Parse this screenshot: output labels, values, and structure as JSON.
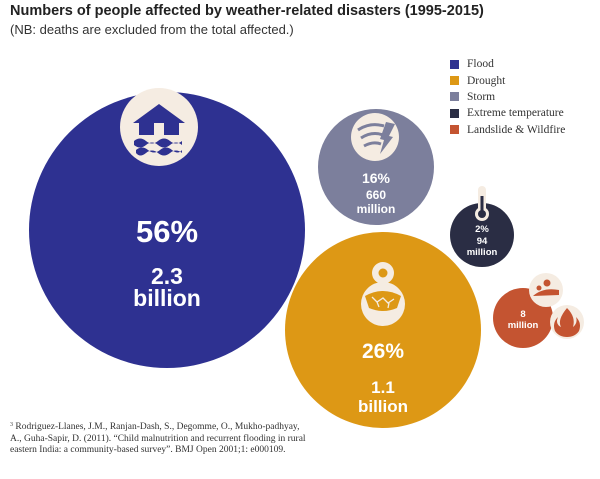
{
  "colors": {
    "flood": "#2e3191",
    "drought": "#dd9815",
    "storm": "#7c7f9c",
    "extreme": "#2a2d44",
    "landslide": "#c45431",
    "icon_bg": "#f5ece2"
  },
  "chart_data": {
    "type": "bubble",
    "title": "Numbers of people affected by weather-related disasters (1995-2015)",
    "subtitle": "(NB: deaths are excluded from the total affected.)",
    "legend": [
      {
        "key": "flood",
        "label": "Flood"
      },
      {
        "key": "drought",
        "label": "Drought"
      },
      {
        "key": "storm",
        "label": "Storm"
      },
      {
        "key": "extreme",
        "label": "Extreme temperature"
      },
      {
        "key": "landslide",
        "label": "Landslide & Wildfire"
      }
    ],
    "series": [
      {
        "name": "Flood",
        "key": "flood",
        "percent_label": "56%",
        "value_billion": 2.3,
        "value_line1": "2.3",
        "value_line2": "billion",
        "icon": "flooded-house-icon"
      },
      {
        "name": "Drought",
        "key": "drought",
        "percent_label": "26%",
        "value_billion": 1.1,
        "value_line1": "1.1",
        "value_line2": "billion",
        "icon": "cracked-earth-sun-icon"
      },
      {
        "name": "Storm",
        "key": "storm",
        "percent_label": "16%",
        "value_billion": 0.66,
        "value_line1": "660",
        "value_line2": "million",
        "icon": "storm-swirl-icon"
      },
      {
        "name": "Extreme temperature",
        "key": "extreme",
        "percent_label": "2%",
        "value_billion": 0.094,
        "value_line1": "94",
        "value_line2": "million",
        "icon": "thermometer-icon"
      },
      {
        "name": "Landslide & Wildfire",
        "key": "landslide",
        "percent_label": "",
        "value_billion": 0.008,
        "value_line1": "8",
        "value_line2": "million",
        "icon": "landslide-fire-icon"
      }
    ]
  },
  "footnote": {
    "marker": "3",
    "text": "Rodriguez-Llanes, J.M., Ranjan-Dash, S., Degomme, O., Mukho-padhyay, A., Guha-Sapir, D. (2011). “Child malnutrition and recurrent flooding in rural eastern India: a community-based survey”. BMJ Open 2001;1: e000109."
  }
}
